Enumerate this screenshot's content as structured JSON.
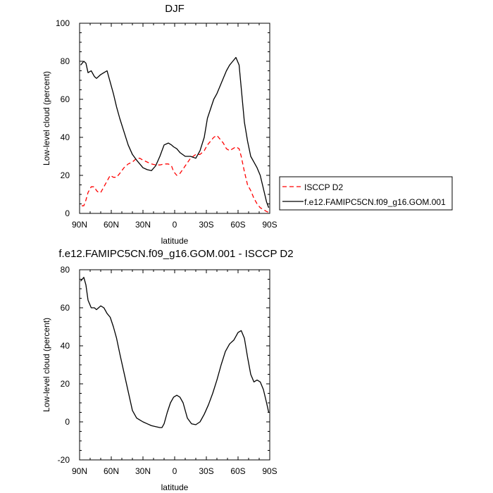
{
  "chart_data": [
    {
      "type": "line",
      "title": "DJF",
      "xlabel": "latitude",
      "ylabel": "Low-level cloud (percent)",
      "xlim": [
        90,
        -90
      ],
      "ylim": [
        0,
        100
      ],
      "xticks": [
        90,
        60,
        30,
        0,
        -30,
        -60,
        -90
      ],
      "xtick_labels": [
        "90N",
        "60N",
        "30N",
        "0",
        "30S",
        "60S",
        "90S"
      ],
      "yticks": [
        0,
        20,
        40,
        60,
        80,
        100
      ],
      "ytick_labels": [
        "0",
        "20",
        "40",
        "60",
        "80",
        "100"
      ],
      "legend": "outside-right",
      "series": [
        {
          "name": "ISCCP D2",
          "color": "#ff0000",
          "dash": "dashed",
          "x": [
            88,
            86,
            84,
            82,
            79,
            76,
            74,
            72,
            70,
            67,
            64,
            61,
            58,
            55,
            52,
            48,
            44,
            40,
            36,
            33,
            30,
            26,
            22,
            18,
            14,
            10,
            6,
            3,
            1,
            -2,
            -5,
            -10,
            -15,
            -20,
            -24,
            -28,
            -31,
            -34,
            -37,
            -40,
            -43,
            -46,
            -49,
            -52,
            -55,
            -58,
            -61,
            -63,
            -66,
            -69,
            -72,
            -75,
            -78,
            -81,
            -84,
            -87,
            -89
          ],
          "y": [
            4,
            4,
            7,
            11,
            14,
            14,
            12,
            11,
            11,
            14,
            17,
            20,
            19,
            19,
            21,
            24,
            26,
            27,
            29,
            29,
            28,
            27,
            26,
            25.5,
            25.5,
            26,
            26,
            25,
            22,
            20,
            21,
            25,
            29,
            31,
            31,
            33,
            36,
            38,
            40,
            41,
            39,
            37,
            34,
            33,
            34,
            35,
            34,
            30,
            22,
            15,
            12,
            8,
            5,
            3,
            2,
            1,
            0.5
          ]
        },
        {
          "name": "f.e12.FAMIPC5CN.f09_g16.GOM.001",
          "color": "#000000",
          "dash": "solid",
          "x": [
            89,
            86,
            84,
            82,
            79,
            76,
            74,
            72,
            70,
            67,
            64,
            61,
            58,
            55,
            52,
            48,
            44,
            40,
            36,
            33,
            30,
            26,
            22,
            18,
            14,
            10,
            6,
            3,
            1,
            -2,
            -5,
            -10,
            -15,
            -20,
            -24,
            -28,
            -31,
            -34,
            -37,
            -40,
            -43,
            -46,
            -49,
            -52,
            -55,
            -58,
            -61,
            -63,
            -66,
            -69,
            -72,
            -75,
            -78,
            -81,
            -84,
            -87,
            -89
          ],
          "y": [
            78,
            80,
            79,
            74,
            75,
            72,
            71,
            72,
            73,
            74,
            75,
            69,
            63,
            56,
            50,
            43,
            36,
            31,
            28,
            26,
            24,
            23,
            22.5,
            25,
            30,
            36,
            37,
            36,
            35,
            34,
            32,
            30,
            30,
            29,
            33,
            40,
            50,
            55,
            60,
            63,
            67,
            71,
            75,
            78,
            80,
            82,
            78,
            66,
            48,
            38,
            30,
            27,
            24,
            20,
            13,
            6,
            3
          ]
        }
      ]
    },
    {
      "type": "line",
      "title": "f.e12.FAMIPC5CN.f09_g16.GOM.001 - ISCCP D2",
      "xlabel": "latitude",
      "ylabel": "Low-level cloud (percent)",
      "xlim": [
        90,
        -90
      ],
      "ylim": [
        -20,
        80
      ],
      "xticks": [
        90,
        60,
        30,
        0,
        -30,
        -60,
        -90
      ],
      "xtick_labels": [
        "90N",
        "60N",
        "30N",
        "0",
        "30S",
        "60S",
        "90S"
      ],
      "yticks": [
        -20,
        0,
        20,
        40,
        60,
        80
      ],
      "ytick_labels": [
        "-20",
        "0",
        "20",
        "40",
        "60",
        "80"
      ],
      "series": [
        {
          "color": "#000000",
          "dash": "solid",
          "x": [
            89,
            86,
            84,
            82,
            79,
            76,
            74,
            72,
            70,
            67,
            64,
            61,
            58,
            55,
            52,
            48,
            44,
            40,
            36,
            33,
            30,
            26,
            22,
            18,
            14,
            12,
            10,
            7,
            4,
            1,
            -2,
            -5,
            -8,
            -12,
            -16,
            -20,
            -24,
            -28,
            -32,
            -36,
            -40,
            -44,
            -48,
            -52,
            -56,
            -60,
            -63,
            -66,
            -69,
            -72,
            -75,
            -78,
            -81,
            -84,
            -87,
            -89
          ],
          "y": [
            74,
            76,
            72,
            64,
            60,
            60,
            59,
            60,
            61,
            60,
            57,
            55,
            50,
            44,
            36,
            26,
            16,
            6,
            2,
            1,
            0,
            -1,
            -2,
            -2.5,
            -3,
            -3,
            -1,
            5,
            10,
            13,
            14,
            13,
            10,
            2,
            -1,
            -1.5,
            0,
            4,
            9,
            15,
            22,
            30,
            37,
            41,
            43,
            47,
            48,
            44,
            34,
            25,
            21,
            22,
            21,
            17,
            10,
            5
          ]
        }
      ]
    }
  ]
}
